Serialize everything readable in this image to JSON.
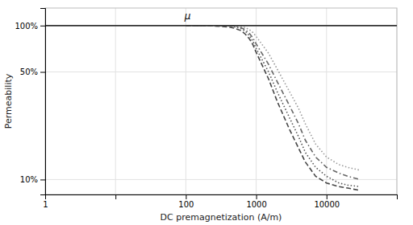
{
  "chart_data": {
    "type": "line",
    "xlabel": "DC premagnetization (A/m)",
    "ylabel": "Permeability",
    "log": true,
    "grid": true,
    "xlim": [
      1,
      100000
    ],
    "ylim": [
      8,
      130
    ],
    "xticks": [
      1,
      {
        "value": 10,
        "label": null
      },
      100,
      1000,
      10000,
      {
        "value": 100000,
        "label": null
      }
    ],
    "yticks": [
      {
        "value": 10,
        "label": "10%"
      },
      {
        "value": 50,
        "label": "50%"
      },
      {
        "value": 100,
        "label": "100%"
      }
    ],
    "x": [
      100,
      200,
      300,
      400,
      500,
      600,
      700,
      800,
      900,
      1000,
      1500,
      2000,
      3000,
      4000,
      5000,
      7000,
      10000,
      15000,
      20000,
      30000
    ],
    "series": [
      {
        "color": "#444444",
        "line_style": "dashed",
        "values": [
          100,
          100,
          99,
          98,
          96,
          93,
          88,
          82,
          75,
          67,
          45,
          32,
          21,
          16,
          13,
          10.5,
          9.5,
          9,
          8.8,
          8.5
        ]
      },
      {
        "color": "#555555",
        "line_style": "dotted",
        "values": [
          100,
          100,
          100,
          99.5,
          98,
          96,
          92,
          86,
          79,
          71,
          50,
          37,
          25,
          19,
          15,
          12,
          10.5,
          9.5,
          9.2,
          9
        ]
      },
      {
        "color": "#666666",
        "line_style": "dashdot",
        "values": [
          100,
          100,
          100,
          100,
          99,
          97,
          94,
          89,
          83,
          76,
          56,
          43,
          30,
          23,
          18,
          14,
          12,
          11,
          10.5,
          10
        ]
      },
      {
        "color": "#999999",
        "line_style": "dotted",
        "values": [
          100,
          100,
          100,
          100,
          100,
          99,
          97,
          94,
          90,
          85,
          66,
          52,
          37,
          29,
          23,
          17,
          14,
          12.5,
          12,
          11.5
        ]
      }
    ],
    "reference_lines": [
      {
        "y": 100,
        "color": "#333333"
      }
    ],
    "annotations": [
      "μ"
    ]
  }
}
